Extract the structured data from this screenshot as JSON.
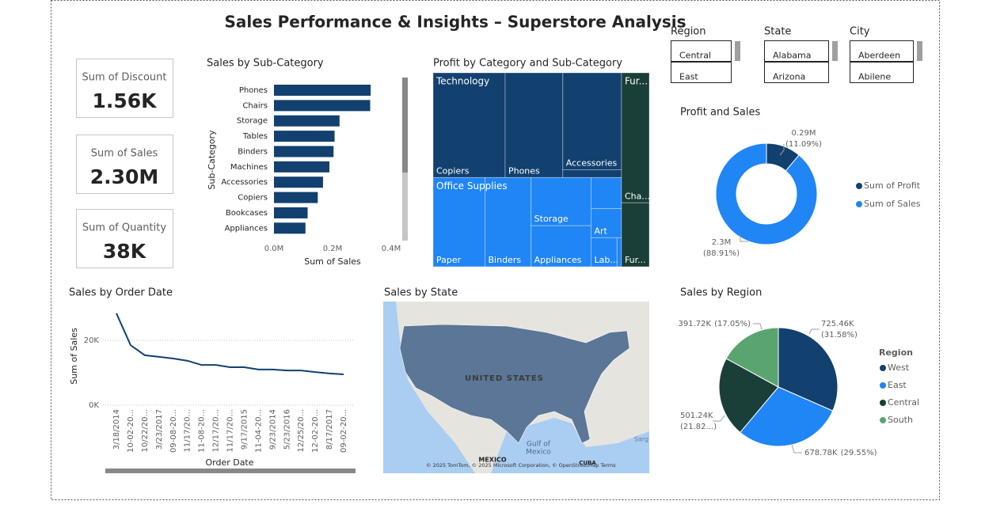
{
  "title": "Sales Performance & Insights – Superstore Analysis",
  "cards": [
    {
      "label": "Sum of Discount",
      "value": "1.56K"
    },
    {
      "label": "Sum of Sales",
      "value": "2.30M"
    },
    {
      "label": "Sum of Quantity",
      "value": "38K"
    }
  ],
  "slicers": [
    {
      "title": "Region",
      "items": [
        "Central",
        "East"
      ]
    },
    {
      "title": "State",
      "items": [
        "Alabama",
        "Arizona"
      ]
    },
    {
      "title": "City",
      "items": [
        "Aberdeen",
        "Abilene"
      ]
    }
  ],
  "map": {
    "title": "Sales by State",
    "labels": [
      "UNITED STATES",
      "Gulf of",
      "Mexico",
      "MEXICO",
      "CUBA",
      "Sarg"
    ],
    "attribution": "© 2025 TomTom, © 2025 Microsoft Corporation, © OpenStreetMap  Terms"
  },
  "chart_data": [
    {
      "type": "bar",
      "orientation": "horizontal",
      "title": "Sales by Sub-Category",
      "xlabel": "Sum of Sales",
      "ylabel": "Sub-Category",
      "categories": [
        "Phones",
        "Chairs",
        "Storage",
        "Tables",
        "Binders",
        "Machines",
        "Accessories",
        "Copiers",
        "Bookcases",
        "Appliances"
      ],
      "values": [
        330007,
        328449,
        223844,
        206966,
        203413,
        189239,
        167380,
        149528,
        114880,
        107532
      ],
      "color": "#12406f",
      "xlim": [
        0,
        400000
      ],
      "xticks": [
        {
          "value": 0,
          "label": "0.0M"
        },
        {
          "value": 200000,
          "label": "0.2M"
        },
        {
          "value": 400000,
          "label": "0.4M"
        }
      ]
    },
    {
      "type": "treemap",
      "title": "Profit by Category and Sub-Category",
      "groups": [
        {
          "label": "Technology",
          "color": "#12406f",
          "children": [
            {
              "label": "Copiers",
              "value": 55618
            },
            {
              "label": "Phones",
              "value": 44516
            },
            {
              "label": "Accessories",
              "value": 41937
            },
            {
              "label": null,
              "value": 3385
            }
          ]
        },
        {
          "label": "Office Supplies",
          "color": "#2085f5",
          "children": [
            {
              "label": "Paper",
              "value": 34054
            },
            {
              "label": "Binders",
              "value": 30222
            },
            {
              "label": "Storage",
              "value": 21279
            },
            {
              "label": "Appliances",
              "value": 18138
            },
            {
              "label": null,
              "value": 6964
            },
            {
              "label": "Art",
              "value": 6528
            },
            {
              "label": "Lab...",
              "value": 5546
            },
            {
              "label": null,
              "value": 950
            }
          ]
        },
        {
          "label": "Fur...",
          "color": "#1a3e38",
          "children": [
            {
              "label": "Cha...",
              "value": 26590
            },
            {
              "label": "Fur...",
              "value": 13059
            }
          ]
        }
      ]
    },
    {
      "type": "donut",
      "title": "Profit and Sales",
      "categories": [
        "Sum of Profit",
        "Sum of Sales"
      ],
      "values": [
        286397,
        2297201
      ],
      "value_labels": [
        "0.29M",
        "2.3M"
      ],
      "percent_labels": [
        "(11.09%)",
        "(88.91%)"
      ],
      "colors": [
        "#12406f",
        "#2085f5"
      ]
    },
    {
      "type": "line",
      "title": "Sales by Order Date",
      "xlabel": "Order Date",
      "ylabel": "Sum of Sales",
      "categories": [
        "3/18/2014",
        "10-02-20...",
        "10/22/20...",
        "3/23/2017",
        "09-08-20...",
        "11/17/20...",
        "11-08-20...",
        "12/17/20...",
        "11/17/20...",
        "9/17/2015",
        "11-04-20...",
        "9/23/2014",
        "5/23/2016",
        "12/25/20...",
        "12-02-20...",
        "8/17/2017",
        "09-02-20..."
      ],
      "values": [
        28300,
        18500,
        15400,
        14900,
        14400,
        13700,
        12400,
        12400,
        11700,
        11700,
        11000,
        11000,
        10700,
        10700,
        10200,
        9800,
        9500
      ],
      "color": "#12406f",
      "ylim": [
        0,
        30000
      ],
      "yticks": [
        {
          "value": 0,
          "label": "0K"
        },
        {
          "value": 20000,
          "label": "20K"
        }
      ],
      "grid": true
    },
    {
      "type": "pie",
      "title": "Sales by Region",
      "legend_title": "Region",
      "categories": [
        "West",
        "East",
        "Central",
        "South"
      ],
      "values": [
        725458,
        678781,
        501240,
        391722
      ],
      "value_labels": [
        "725.46K",
        "678.78K",
        "501.24K",
        "391.72K"
      ],
      "percent_labels": [
        "(31.58%)",
        "(29.55%)",
        "(21.82...)",
        "(17.05%)"
      ],
      "colors": [
        "#12406f",
        "#2085f5",
        "#1a3e38",
        "#5aa56f"
      ]
    }
  ]
}
